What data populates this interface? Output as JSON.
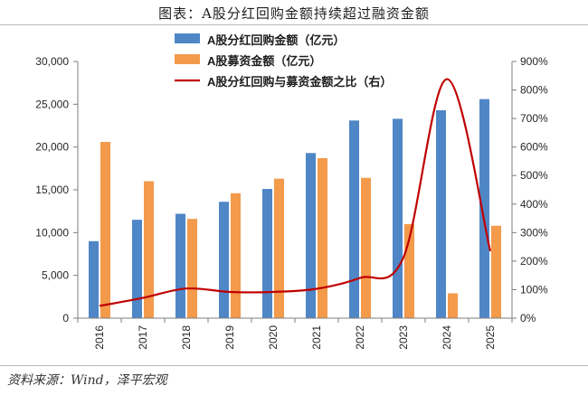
{
  "title": "图表：A股分红回购金额持续超过融资金额",
  "source": "资料来源：Wind，泽平宏观",
  "colors": {
    "buyback": "#4f86c6",
    "financing": "#f39a4b",
    "ratio": "#c00000"
  },
  "chart_data": {
    "type": "bar",
    "categories": [
      "2016",
      "2017",
      "2018",
      "2019",
      "2020",
      "2021",
      "2022",
      "2023",
      "2024",
      "2025"
    ],
    "series": [
      {
        "name": "A股分红回购金额（亿元）",
        "type": "bar",
        "axis": "left",
        "values": [
          9000,
          11500,
          12200,
          13600,
          15100,
          19300,
          23100,
          23300,
          24300,
          25600
        ]
      },
      {
        "name": "A股募资金额（亿元）",
        "type": "bar",
        "axis": "left",
        "values": [
          20600,
          16000,
          11600,
          14600,
          16300,
          18700,
          16400,
          11000,
          2900,
          10800
        ]
      },
      {
        "name": "A股分红回购与募资金额之比（右）",
        "type": "line",
        "axis": "right",
        "unit": "%",
        "values": [
          43,
          71,
          104,
          92,
          92,
          103,
          141,
          213,
          838,
          235
        ]
      }
    ],
    "left_axis": {
      "min": 0,
      "max": 30000,
      "step": 5000,
      "ticks": [
        "0",
        "5,000",
        "10,000",
        "15,000",
        "20,000",
        "25,000",
        "30,000"
      ]
    },
    "right_axis": {
      "min": 0,
      "max": 900,
      "step": 100,
      "ticks": [
        "0%",
        "100%",
        "200%",
        "300%",
        "400%",
        "500%",
        "600%",
        "700%",
        "800%",
        "900%"
      ]
    },
    "legend_position": "top-center",
    "grid": false
  }
}
